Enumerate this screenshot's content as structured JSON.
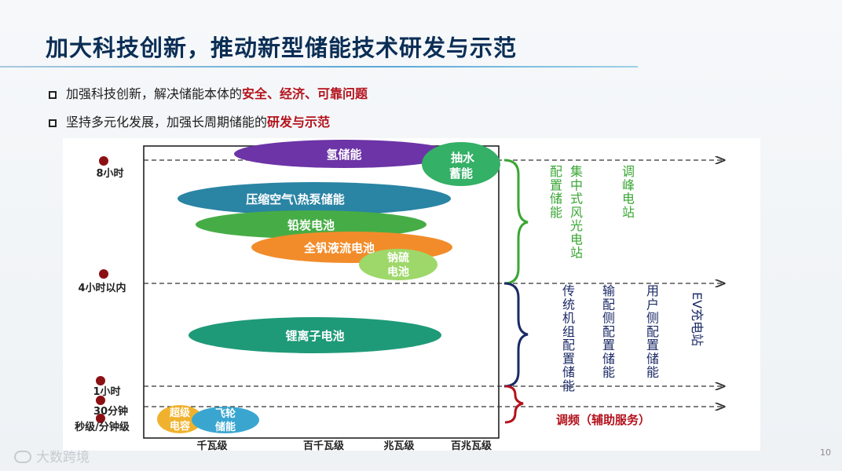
{
  "title": "加大科技创新，推动新型储能技术研发与示范",
  "bullets": [
    {
      "text": "加强科技创新，解决储能本体的",
      "highlight": "安全、经济、可靠问题"
    },
    {
      "text": "坚持多元化发展，加强长周期储能的",
      "highlight": "研发与示范"
    }
  ],
  "diagram": {
    "y_labels": [
      "8小时",
      "4小时以内",
      "1小时",
      "30分钟",
      "秒级/分钟级"
    ],
    "x_labels": [
      "千瓦级",
      "百千瓦级",
      "兆瓦级",
      "百兆瓦级"
    ],
    "technologies": {
      "hydrogen": "氢储能",
      "pumped_hydro": [
        "抽水",
        "蓄能"
      ],
      "caes": "压缩空气\\热泵储能",
      "lead_carbon": "铅炭电池",
      "vanadium_flow": "全钒液流电池",
      "sodium_sulfur": [
        "钠硫",
        "电池"
      ],
      "lithium_ion": "锂离子电池",
      "supercapacitor": [
        "超级",
        "电容"
      ],
      "flywheel": [
        "飞轮",
        "储能"
      ]
    },
    "upper_group": {
      "labels": [
        "配置储能",
        "集中式风光电站",
        "调峰电站"
      ]
    },
    "middle_group": {
      "labels": [
        "传统机组配置储能",
        "输配侧配置储能",
        "用户侧配置储能",
        "EV充电站"
      ]
    },
    "lower_group": {
      "label": "调频（辅助服务）"
    },
    "colors": {
      "hydrogen": "#6c34a6",
      "pumped_hydro": "#34b067",
      "caes": "#2a84a4",
      "lead_carbon": "#46ad46",
      "vanadium_flow": "#f28c2a",
      "sodium_sulfur": "#9ed86a",
      "lithium_ion": "#1f9a78",
      "supercapacitor": "#f0b22e",
      "flywheel": "#3aa6d0",
      "upper_group": "#3aa634",
      "middle_group": "#1a2a66",
      "lower_group": "#b3121c",
      "marker": "#8b1014"
    }
  },
  "watermark": "大数跨境",
  "page_number": "10"
}
